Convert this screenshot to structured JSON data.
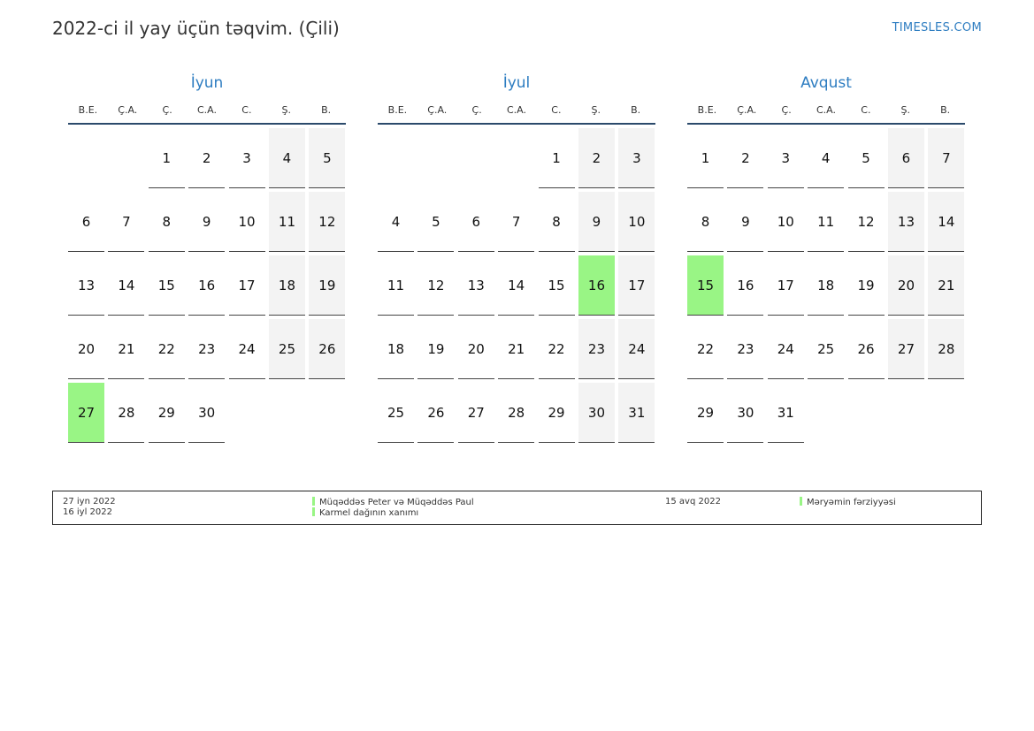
{
  "title": "2022-ci il yay üçün təqvim. (Çili)",
  "site": "TIMESLES.COM",
  "weekdays": [
    "B.E.",
    "Ç.A.",
    "Ç.",
    "C.A.",
    "C.",
    "Ş.",
    "B."
  ],
  "months": [
    {
      "name": "İyun",
      "offset": 2,
      "days": 30,
      "holidays": [
        27
      ]
    },
    {
      "name": "İyul",
      "offset": 4,
      "days": 31,
      "holidays": [
        16
      ]
    },
    {
      "name": "Avqust",
      "offset": 0,
      "days": 31,
      "holidays": [
        15
      ]
    }
  ],
  "legend": {
    "left": [
      {
        "date": "27 iyn 2022",
        "name": "Müqəddəs Peter və Müqəddəs Paul"
      },
      {
        "date": "16 iyl 2022",
        "name": "Karmel dağının xanımı"
      }
    ],
    "right": [
      {
        "date": "15 avq 2022",
        "name": "Məryəmin fərziyyəsi"
      }
    ]
  }
}
